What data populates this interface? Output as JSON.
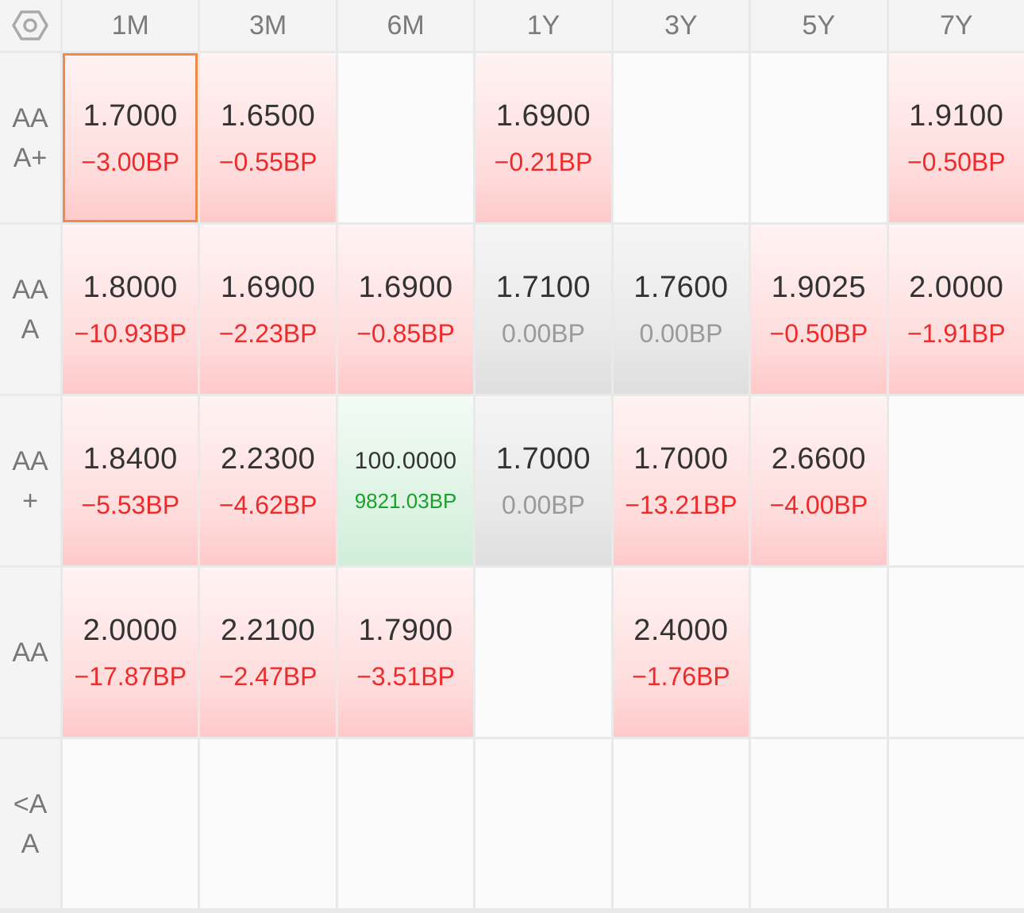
{
  "header": {
    "settings_icon": "hexagon-settings-icon",
    "tenors": [
      "1M",
      "3M",
      "6M",
      "1Y",
      "3Y",
      "5Y",
      "7Y"
    ]
  },
  "rows": [
    {
      "rating": "AAA+",
      "cells": [
        {
          "rate": "1.7000",
          "change": "−3.00BP",
          "trend": "up",
          "selected": true
        },
        {
          "rate": "1.6500",
          "change": "−0.55BP",
          "trend": "up"
        },
        null,
        {
          "rate": "1.6900",
          "change": "−0.21BP",
          "trend": "up"
        },
        null,
        null,
        {
          "rate": "1.9100",
          "change": "−0.50BP",
          "trend": "up"
        }
      ]
    },
    {
      "rating": "AAA",
      "cells": [
        {
          "rate": "1.8000",
          "change": "−10.93BP",
          "trend": "up"
        },
        {
          "rate": "1.6900",
          "change": "−2.23BP",
          "trend": "up"
        },
        {
          "rate": "1.6900",
          "change": "−0.85BP",
          "trend": "up"
        },
        {
          "rate": "1.7100",
          "change": "0.00BP",
          "trend": "flat"
        },
        {
          "rate": "1.7600",
          "change": "0.00BP",
          "trend": "flat"
        },
        {
          "rate": "1.9025",
          "change": "−0.50BP",
          "trend": "up"
        },
        {
          "rate": "2.0000",
          "change": "−1.91BP",
          "trend": "up"
        }
      ]
    },
    {
      "rating": "AA+",
      "cells": [
        {
          "rate": "1.8400",
          "change": "−5.53BP",
          "trend": "up"
        },
        {
          "rate": "2.2300",
          "change": "−4.62BP",
          "trend": "up"
        },
        {
          "rate": "100.0000",
          "change": "9821.03BP",
          "trend": "down",
          "small": true
        },
        {
          "rate": "1.7000",
          "change": "0.00BP",
          "trend": "flat"
        },
        {
          "rate": "1.7000",
          "change": "−13.21BP",
          "trend": "up"
        },
        {
          "rate": "2.6600",
          "change": "−4.00BP",
          "trend": "up"
        },
        null
      ]
    },
    {
      "rating": "AA",
      "cells": [
        {
          "rate": "2.0000",
          "change": "−17.87BP",
          "trend": "up"
        },
        {
          "rate": "2.2100",
          "change": "−2.47BP",
          "trend": "up"
        },
        {
          "rate": "1.7900",
          "change": "−3.51BP",
          "trend": "up"
        },
        null,
        {
          "rate": "2.4000",
          "change": "−1.76BP",
          "trend": "up"
        },
        null,
        null
      ]
    },
    {
      "rating": "<AA",
      "cells": [
        null,
        null,
        null,
        null,
        null,
        null,
        null
      ]
    }
  ]
}
